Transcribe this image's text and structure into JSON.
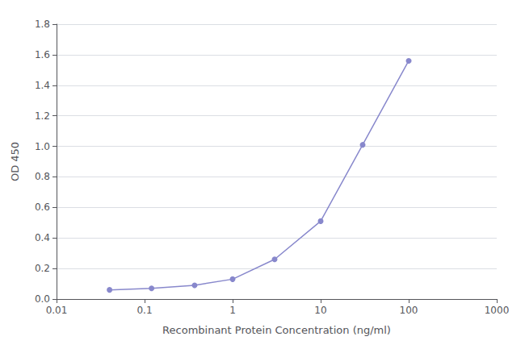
{
  "chart_data": {
    "type": "line",
    "x": [
      0.04,
      0.12,
      0.37,
      1.0,
      3.0,
      10.0,
      30.0,
      100.0
    ],
    "values": [
      0.06,
      0.07,
      0.09,
      0.13,
      0.26,
      0.51,
      1.01,
      1.56
    ],
    "xlabel": "Recombinant Protein Concentration (ng/ml)",
    "ylabel": "OD 450",
    "log": "x",
    "xlim": [
      0.01,
      1000
    ],
    "xticks": [
      0.01,
      0.1,
      1,
      10,
      100,
      1000
    ],
    "ylim": [
      0.0,
      1.8
    ],
    "yticks": [
      {
        "value": 0.0,
        "label": "0.0"
      },
      0.2,
      0.4,
      0.6,
      0.8,
      {
        "value": 1.0,
        "label": "1.0"
      },
      1.2,
      1.4,
      1.6,
      1.8
    ],
    "color": "#8888cc",
    "marker": "circle",
    "grid": "y"
  }
}
